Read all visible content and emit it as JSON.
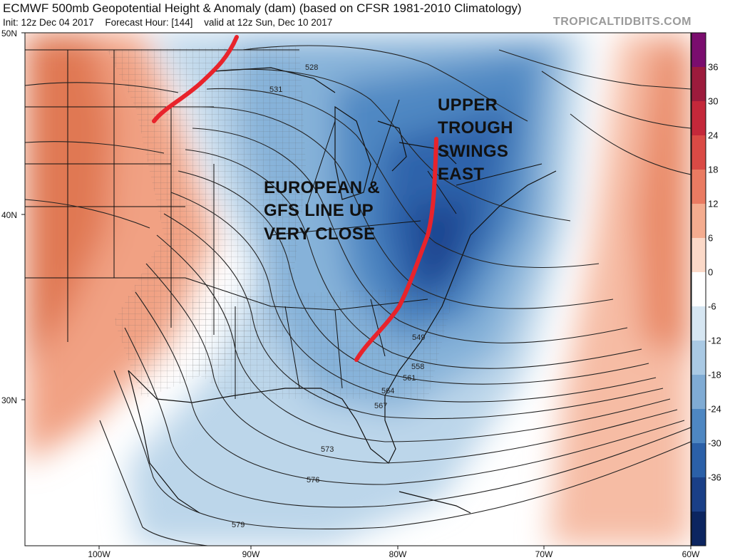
{
  "header": {
    "title": "ECMWF 500mb Geopotential Height & Anomaly (dam) (based on CFSR 1981-2010 Climatology)",
    "init": "Init: 12z Dec 04 2017",
    "forecast_hour": "Forecast Hour: [144]",
    "valid": "valid at 12z Sun, Dec 10 2017",
    "credit": "TROPICALTIDBITS.COM"
  },
  "axes": {
    "lat_labels": [
      "50N",
      "40N",
      "30N"
    ],
    "lon_labels": [
      "100W",
      "90W",
      "80W",
      "70W",
      "60W"
    ]
  },
  "colorbar": {
    "labels": [
      "36",
      "30",
      "24",
      "18",
      "12",
      "6",
      "0",
      "-6",
      "-12",
      "-18",
      "-24",
      "-30",
      "-36"
    ],
    "colors": [
      "#7a0d6e",
      "#9c1b3c",
      "#c4283a",
      "#da4a45",
      "#ea7b62",
      "#f4ac8f",
      "#fbd9c8",
      "#ffffff",
      "#d6e6f2",
      "#a9c9e4",
      "#7fabd4",
      "#4e87c2",
      "#2b60a8",
      "#1a3f87",
      "#0c2560"
    ]
  },
  "contour_labels": [
    "528",
    "531",
    "549",
    "558",
    "561",
    "564",
    "567",
    "573",
    "576",
    "579"
  ],
  "annotations": {
    "left_block": [
      "EUROPEAN &",
      "GFS LINE UP",
      "VERY CLOSE"
    ],
    "right_block": [
      "UPPER",
      "TROUGH",
      "SWINGS",
      "EAST"
    ]
  },
  "colors": {
    "trough_line": "#e8232b",
    "contour": "#222222",
    "positive_anomaly": "#e0714f",
    "negative_anomaly": "#2f6db5"
  }
}
